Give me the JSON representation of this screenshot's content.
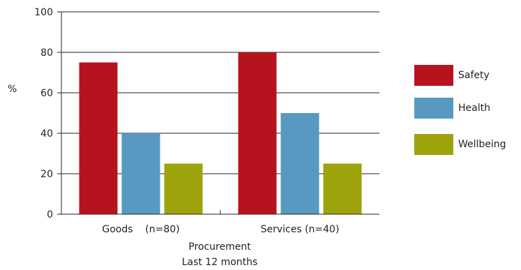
{
  "chart_data": {
    "type": "bar",
    "categories": [
      "Goods    (n=80)",
      "Services (n=40)"
    ],
    "series": [
      {
        "name": "Safety",
        "values": [
          75,
          80
        ],
        "color": "#b5141f"
      },
      {
        "name": "Health",
        "values": [
          40,
          50
        ],
        "color": "#5899c1"
      },
      {
        "name": "Wellbeing",
        "values": [
          25,
          25
        ],
        "color": "#9da30a"
      }
    ],
    "ylabel": "%",
    "xlabel_line1": "Procurement",
    "xlabel_line2": "Last 12 months",
    "ylim": [
      0,
      100
    ],
    "yticks": [
      "0",
      "20",
      "40",
      "60",
      "80",
      "100"
    ],
    "grid": true,
    "legend_position": "right"
  }
}
